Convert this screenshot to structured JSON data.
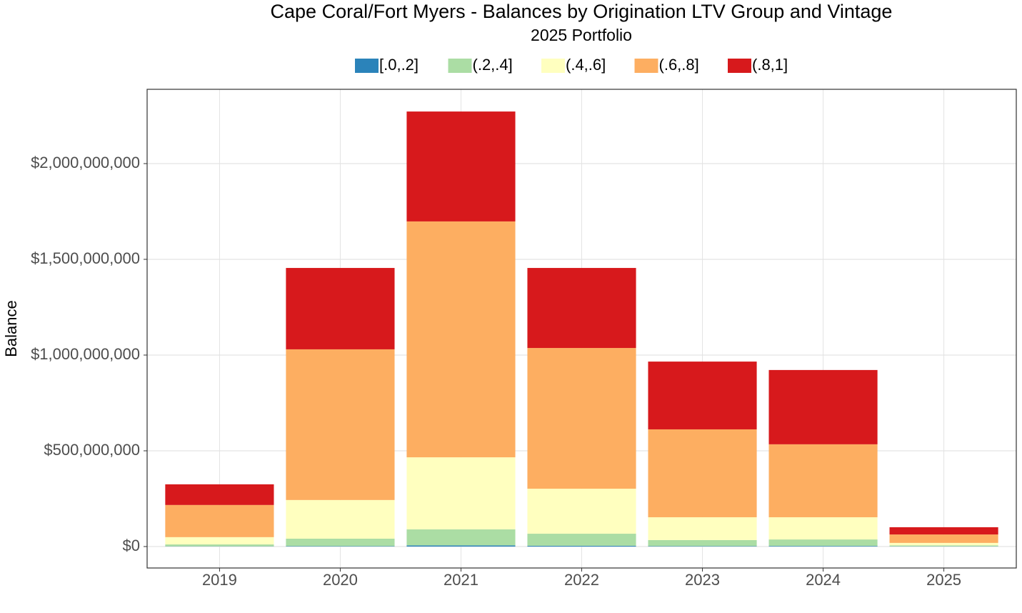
{
  "chart_data": {
    "type": "stacked_bar",
    "title": "Cape Coral/Fort Myers - Balances by Origination LTV Group and Vintage",
    "subtitle": "2025 Portfolio",
    "y_label": "Balance",
    "categories": [
      "2019",
      "2020",
      "2021",
      "2022",
      "2023",
      "2024",
      "2025"
    ],
    "series": [
      {
        "name": "[.0,.2]",
        "color": "#2b83ba",
        "values": [
          1000000,
          2000000,
          6000000,
          4000000,
          2000000,
          3000000,
          1000000
        ]
      },
      {
        "name": "(.2,.4]",
        "color": "#abdda4",
        "values": [
          10000000,
          39000000,
          84000000,
          63000000,
          32000000,
          34000000,
          5000000
        ]
      },
      {
        "name": "(.4,.6]",
        "color": "#ffffbf",
        "values": [
          38000000,
          202000000,
          376000000,
          235000000,
          119000000,
          116000000,
          13000000
        ]
      },
      {
        "name": "(.6,.8]",
        "color": "#fdae61",
        "values": [
          168000000,
          787000000,
          1232000000,
          735000000,
          459000000,
          381000000,
          44000000
        ]
      },
      {
        "name": "(.8,1]",
        "color": "#d7191c",
        "values": [
          108000000,
          425000000,
          574000000,
          418000000,
          354000000,
          388000000,
          38000000
        ]
      }
    ],
    "ylim": [
      -112000000,
      2388000000
    ],
    "yticks": [
      {
        "value": 0,
        "label": "$0"
      },
      {
        "value": 500000000,
        "label": "$500,000,000"
      },
      {
        "value": 1000000000,
        "label": "$1,000,000,000"
      },
      {
        "value": 1500000000,
        "label": "$1,500,000,000"
      },
      {
        "value": 2000000000,
        "label": "$2,000,000,000"
      }
    ],
    "grid": true,
    "legend": "top"
  }
}
